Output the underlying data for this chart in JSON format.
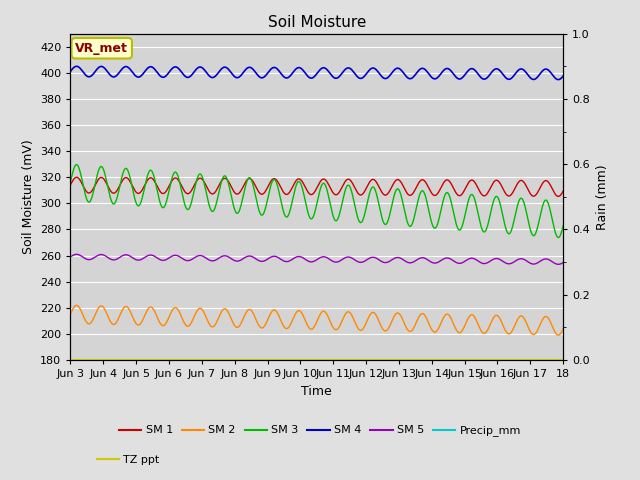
{
  "title": "Soil Moisture",
  "ylabel_left": "Soil Moisture (mV)",
  "ylabel_right": "Rain (mm)",
  "xlabel": "Time",
  "bg_color": "#e0e0e0",
  "plot_bg_color": "#d4d4d4",
  "ylim_left": [
    180,
    430
  ],
  "ylim_right": [
    0.0,
    1.0
  ],
  "yticks_left": [
    180,
    200,
    220,
    240,
    260,
    280,
    300,
    320,
    340,
    360,
    380,
    400,
    420
  ],
  "yticks_right": [
    0.0,
    0.2,
    0.4,
    0.6,
    0.8,
    1.0
  ],
  "n_days": 15,
  "n_points": 3000,
  "series": {
    "SM1": {
      "color": "#cc0000",
      "base": 314,
      "amp": 6,
      "trend": -0.18,
      "freq": 1.33
    },
    "SM2": {
      "color": "#ff8800",
      "base": 215,
      "amp": 7,
      "trend": -0.6,
      "freq": 1.33
    },
    "SM3": {
      "color": "#00bb00",
      "base": 316,
      "amp": 14,
      "trend": -1.9,
      "freq": 1.33
    },
    "SM4": {
      "color": "#0000cc",
      "base": 401,
      "amp": 4,
      "trend": -0.15,
      "freq": 1.33
    },
    "SM5": {
      "color": "#9900bb",
      "base": 259,
      "amp": 2,
      "trend": -0.25,
      "freq": 1.33
    },
    "Precip_mm": {
      "color": "#00cccc",
      "base": 0,
      "amp": 0,
      "trend": 0,
      "freq": 1.0
    },
    "TZ_ppt": {
      "color": "#cccc00",
      "base": 180,
      "amp": 0,
      "trend": 0,
      "freq": 1.0
    }
  },
  "legend_labels": [
    "SM 1",
    "SM 2",
    "SM 3",
    "SM 4",
    "SM 5",
    "Precip_mm",
    "TZ ppt"
  ],
  "legend_colors": [
    "#cc0000",
    "#ff8800",
    "#00bb00",
    "#0000cc",
    "#9900bb",
    "#00cccc",
    "#cccc00"
  ],
  "annotation_text": "VR_met",
  "annotation_color": "#8b0000",
  "annotation_bg": "#ffffcc",
  "annotation_border": "#bbbb00"
}
